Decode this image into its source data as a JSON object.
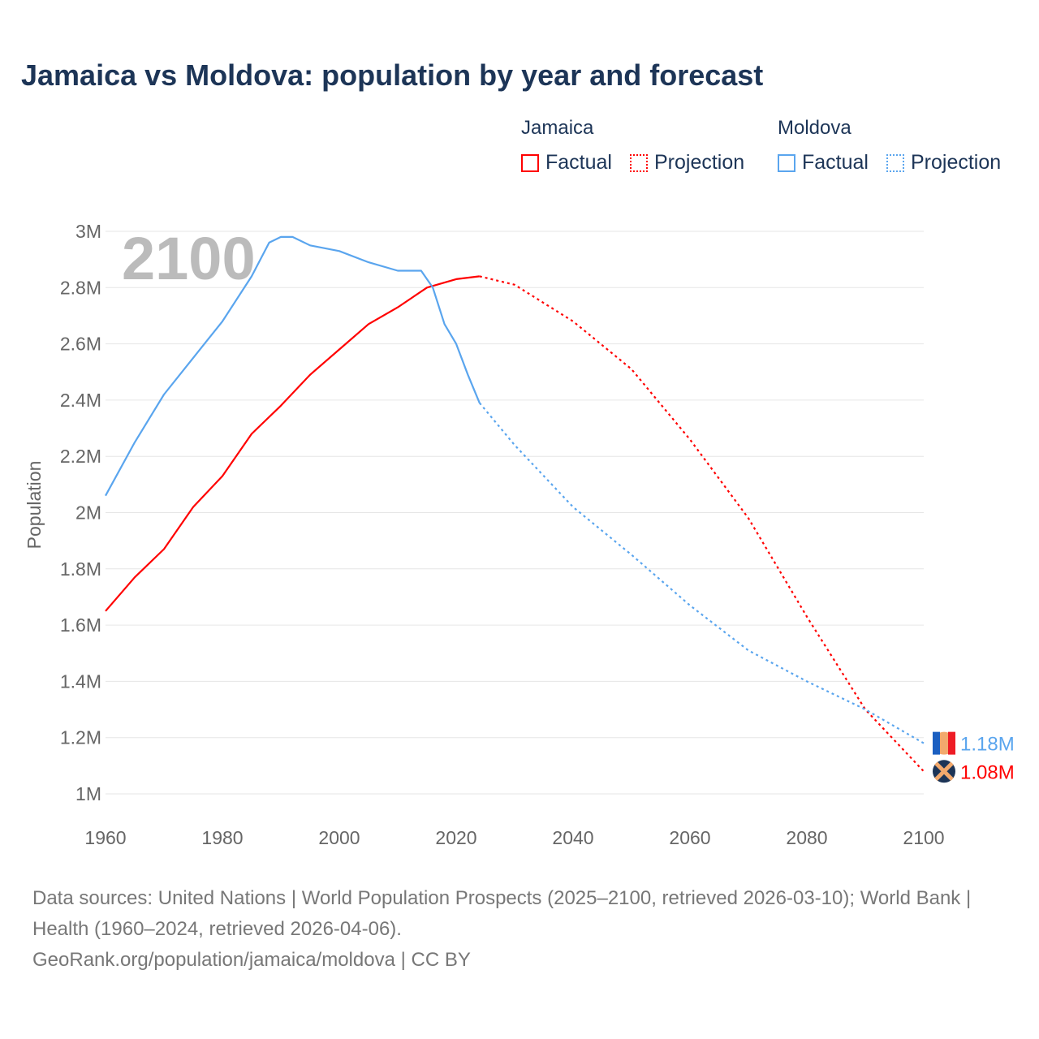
{
  "title": "Jamaica vs Moldova: population by year and forecast",
  "legend": {
    "groups": [
      {
        "name": "Jamaica",
        "factual": "Factual",
        "projection": "Projection",
        "color": "#ff0000"
      },
      {
        "name": "Moldova",
        "factual": "Factual",
        "projection": "Projection",
        "color": "#5aa5ee"
      }
    ]
  },
  "source": {
    "line1": "Data sources: United Nations | World Population Prospects (2025–2100, retrieved 2026-03-10); World Bank | Health (1960–2024, retrieved 2026-04-06).",
    "line2": "GeoRank.org/population/jamaica/moldova | CC BY"
  },
  "chart_data": {
    "type": "line",
    "title": "Jamaica vs Moldova: population by year and forecast",
    "year_label": "2100",
    "xlabel": "",
    "ylabel": "Population",
    "xlim": [
      1960,
      2100
    ],
    "ylim": [
      1000000,
      3000000
    ],
    "x_ticks": [
      "1960",
      "1980",
      "2000",
      "2020",
      "2040",
      "2060",
      "2080",
      "2100"
    ],
    "y_ticks": [
      "1M",
      "1.2M",
      "1.4M",
      "1.6M",
      "1.8M",
      "2M",
      "2.2M",
      "2.4M",
      "2.6M",
      "2.8M",
      "3M"
    ],
    "grid": true,
    "series": [
      {
        "name": "Jamaica",
        "color": "#ff0000",
        "end_label": "1.08M",
        "factual": {
          "x": [
            1960,
            1965,
            1970,
            1975,
            1980,
            1985,
            1990,
            1995,
            2000,
            2005,
            2010,
            2015,
            2020,
            2024
          ],
          "y": [
            1.65,
            1.77,
            1.87,
            2.02,
            2.13,
            2.28,
            2.38,
            2.49,
            2.58,
            2.67,
            2.73,
            2.8,
            2.83,
            2.84
          ]
        },
        "projection": {
          "x": [
            2024,
            2030,
            2040,
            2050,
            2060,
            2070,
            2080,
            2090,
            2100
          ],
          "y": [
            2.84,
            2.81,
            2.68,
            2.51,
            2.26,
            1.98,
            1.63,
            1.3,
            1.08
          ]
        }
      },
      {
        "name": "Moldova",
        "color": "#5aa5ee",
        "end_label": "1.18M",
        "factual": {
          "x": [
            1960,
            1965,
            1970,
            1975,
            1980,
            1985,
            1988,
            1990,
            1992,
            1995,
            2000,
            2005,
            2010,
            2014,
            2016,
            2018,
            2020,
            2022,
            2024
          ],
          "y": [
            2.06,
            2.25,
            2.42,
            2.55,
            2.68,
            2.84,
            2.96,
            2.98,
            2.98,
            2.95,
            2.93,
            2.89,
            2.86,
            2.86,
            2.8,
            2.67,
            2.6,
            2.49,
            2.39
          ]
        },
        "projection": {
          "x": [
            2024,
            2030,
            2040,
            2050,
            2060,
            2070,
            2080,
            2090,
            2100
          ],
          "y": [
            2.39,
            2.24,
            2.02,
            1.85,
            1.67,
            1.51,
            1.4,
            1.3,
            1.18
          ]
        }
      }
    ]
  }
}
